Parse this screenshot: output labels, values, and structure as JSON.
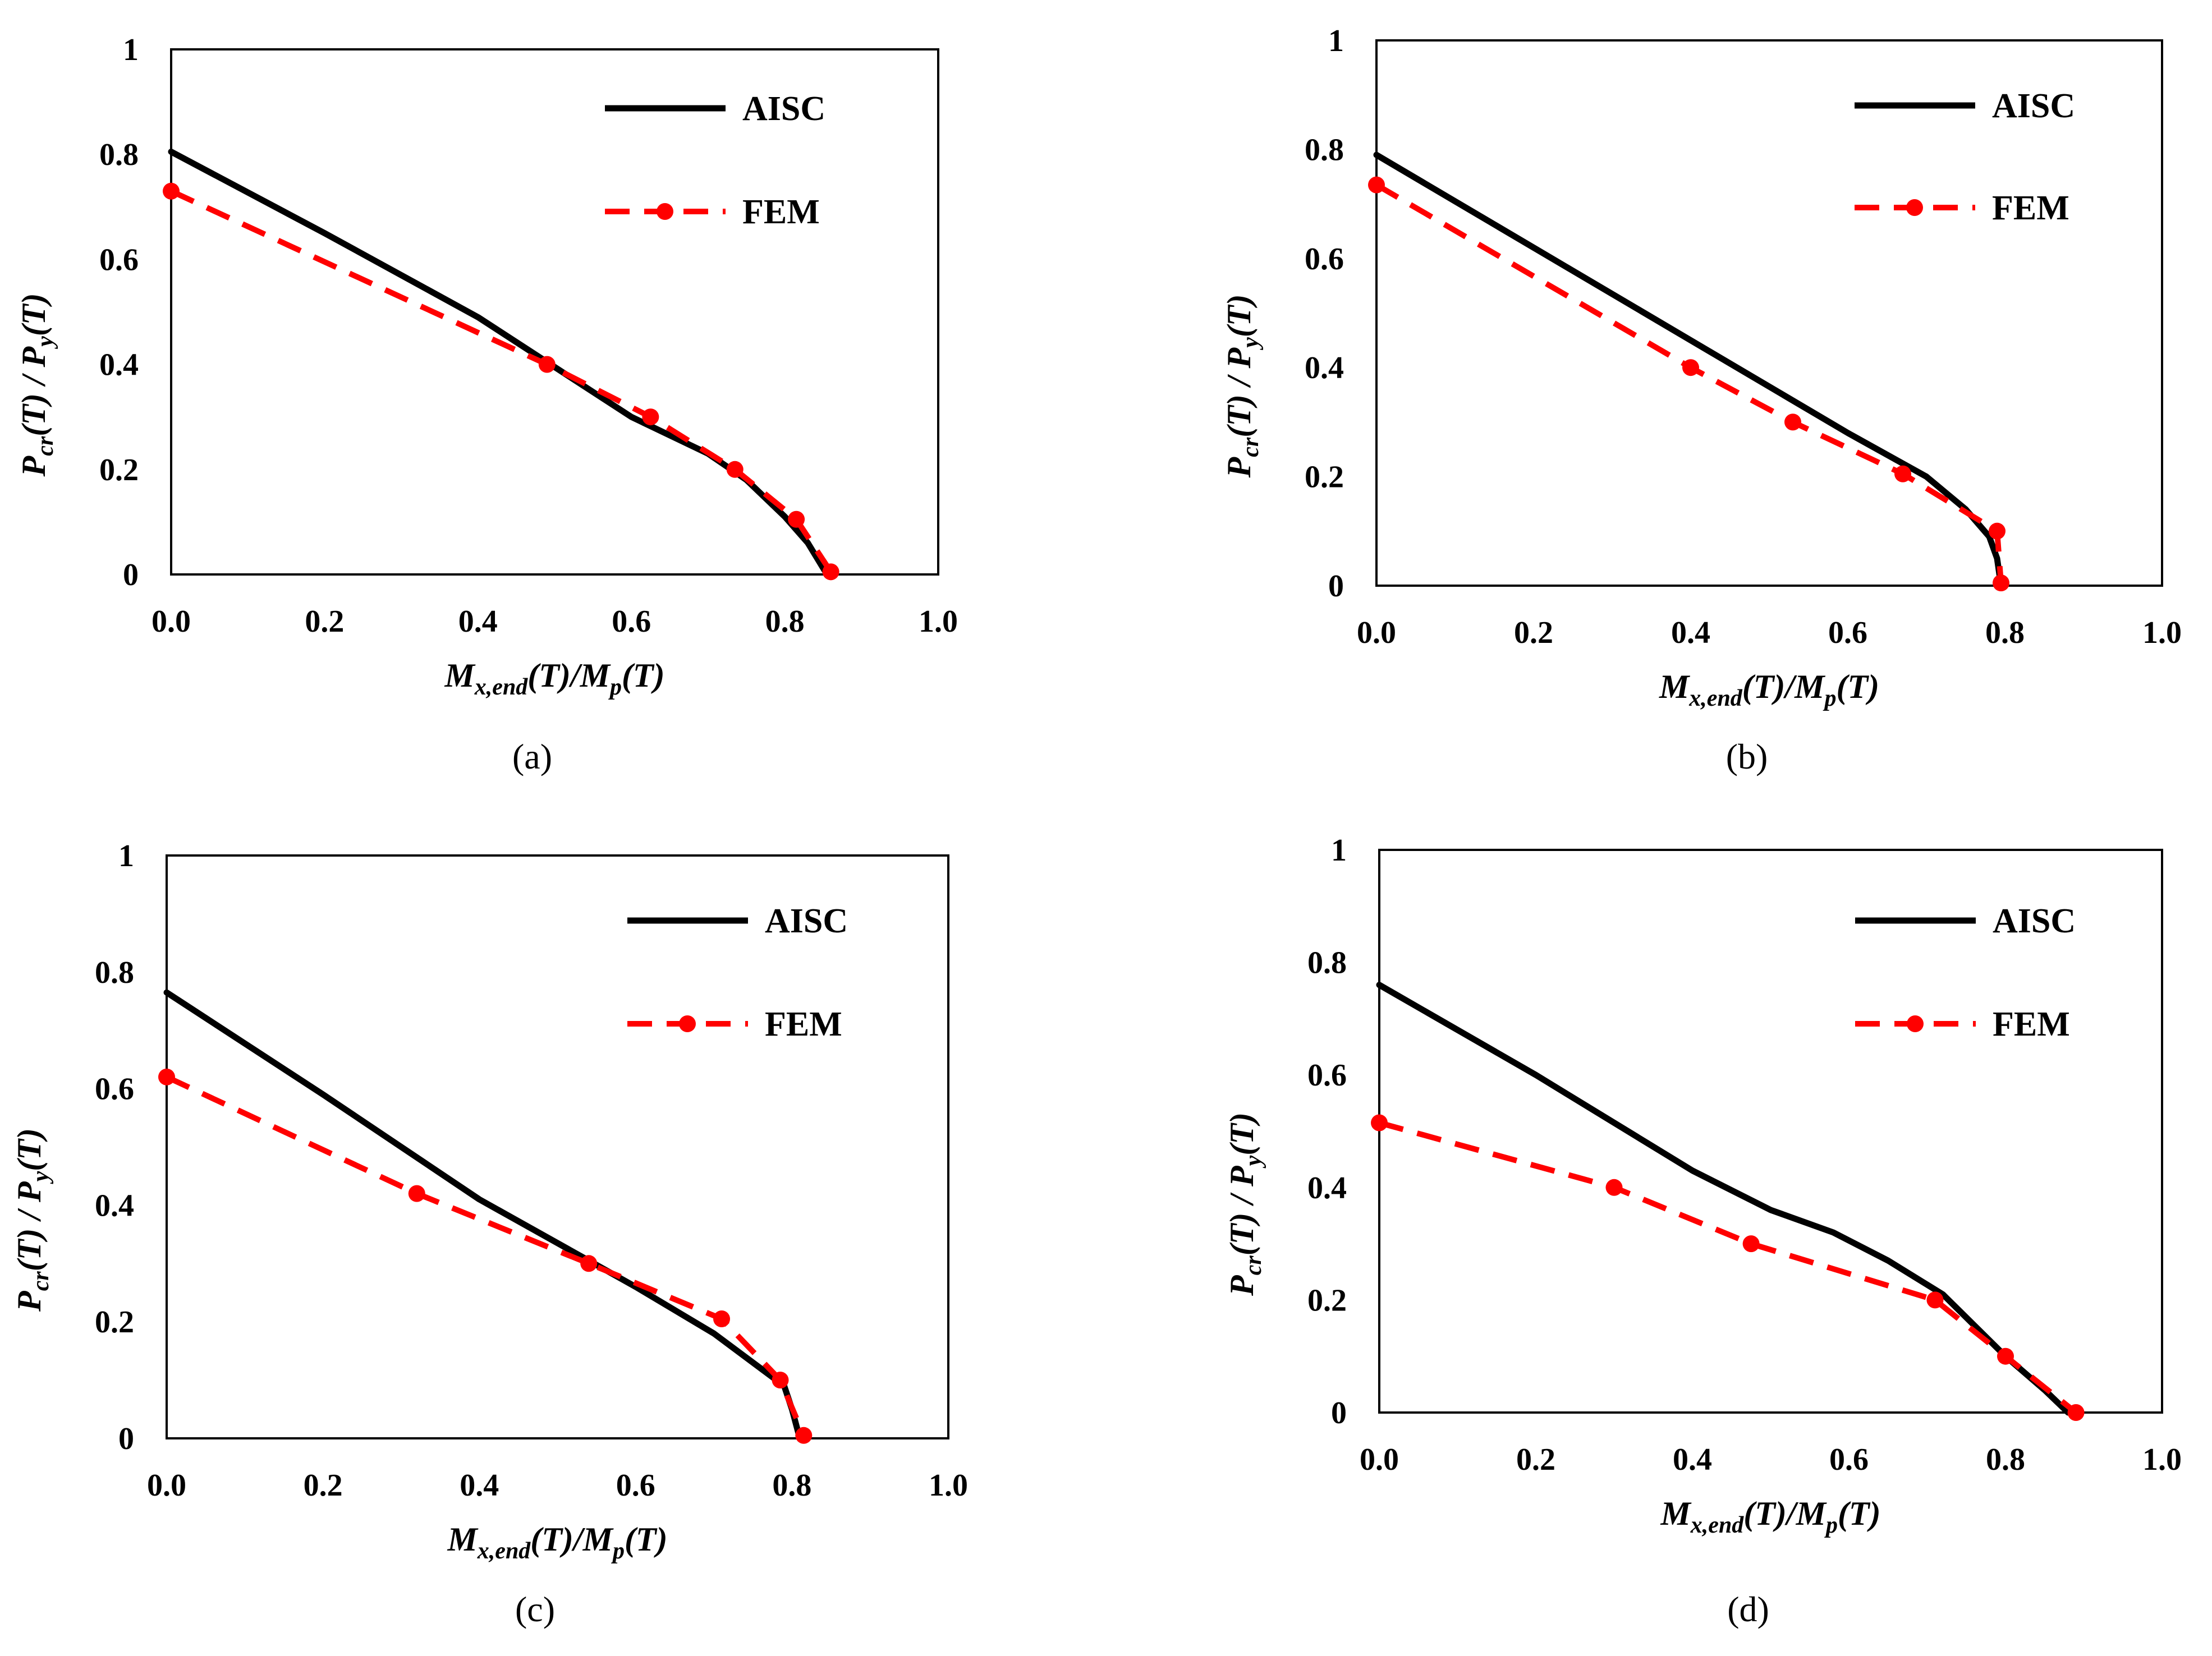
{
  "colors": {
    "aisc": "#000000",
    "fem": "#ff0000",
    "axes": "#000000"
  },
  "chart_data": [
    {
      "panel_label": "(a)",
      "type": "line",
      "xlabel": {
        "main": "M",
        "sub": "x,end",
        "tail": "(T)/M",
        "sub2": "p",
        "tail2": "(T)"
      },
      "ylabel": {
        "main": "P",
        "sub": "cr",
        "mid": "(T) / P",
        "sub2": "y",
        "tail": "(T)"
      },
      "xlim": [
        0,
        1
      ],
      "ylim": [
        0,
        1
      ],
      "xticks": [
        "0.0",
        "0.2",
        "0.4",
        "0.6",
        "0.8",
        "1.0"
      ],
      "yticks": [
        "0",
        "0.2",
        "0.4",
        "0.6",
        "0.8",
        "1"
      ],
      "legend": [
        "AISC",
        "FEM"
      ],
      "series": [
        {
          "name": "AISC",
          "style": "solid",
          "x": [
            0,
            0.2,
            0.4,
            0.6,
            0.7,
            0.75,
            0.8,
            0.83,
            0.855
          ],
          "y": [
            0.805,
            0.65,
            0.49,
            0.3,
            0.23,
            0.18,
            0.11,
            0.06,
            0
          ]
        },
        {
          "name": "FEM",
          "style": "dashed",
          "x": [
            0,
            0.49,
            0.625,
            0.735,
            0.815,
            0.86
          ],
          "y": [
            0.73,
            0.4,
            0.3,
            0.2,
            0.105,
            0.005
          ]
        }
      ]
    },
    {
      "panel_label": "(b)",
      "type": "line",
      "xlabel": {
        "main": "M",
        "sub": "x,end",
        "tail": "(T)/M",
        "sub2": "p",
        "tail2": "(T)"
      },
      "ylabel": {
        "main": "P",
        "sub": "cr",
        "mid": "(T) / P",
        "sub2": "y",
        "tail": "(T)"
      },
      "xlim": [
        0,
        1
      ],
      "ylim": [
        0,
        1
      ],
      "xticks": [
        "0.0",
        "0.2",
        "0.4",
        "0.6",
        "0.8",
        "1.0"
      ],
      "yticks": [
        "0",
        "0.2",
        "0.4",
        "0.6",
        "0.8",
        "1"
      ],
      "legend": [
        "AISC",
        "FEM"
      ],
      "series": [
        {
          "name": "AISC",
          "style": "solid",
          "x": [
            0,
            0.2,
            0.4,
            0.6,
            0.7,
            0.75,
            0.78,
            0.79,
            0.795
          ],
          "y": [
            0.79,
            0.62,
            0.45,
            0.28,
            0.2,
            0.14,
            0.09,
            0.05,
            0
          ]
        },
        {
          "name": "FEM",
          "style": "dashed",
          "x": [
            0,
            0.4,
            0.53,
            0.67,
            0.79,
            0.795
          ],
          "y": [
            0.735,
            0.4,
            0.3,
            0.205,
            0.1,
            0.005
          ]
        }
      ]
    },
    {
      "panel_label": "(c)",
      "type": "line",
      "xlabel": {
        "main": "M",
        "sub": "x,end",
        "tail": "(T)/M",
        "sub2": "p",
        "tail2": "(T)"
      },
      "ylabel": {
        "main": "P",
        "sub": "cr",
        "mid": "(T) / P",
        "sub2": "y",
        "tail": "(T)"
      },
      "xlim": [
        0,
        1
      ],
      "ylim": [
        0,
        1
      ],
      "xticks": [
        "0.0",
        "0.2",
        "0.4",
        "0.6",
        "0.8",
        "1.0"
      ],
      "yticks": [
        "0",
        "0.2",
        "0.4",
        "0.6",
        "0.8",
        "1"
      ],
      "legend": [
        "AISC",
        "FEM"
      ],
      "series": [
        {
          "name": "AISC",
          "style": "solid",
          "x": [
            0,
            0.2,
            0.4,
            0.6,
            0.7,
            0.76,
            0.79,
            0.8,
            0.81
          ],
          "y": [
            0.765,
            0.59,
            0.41,
            0.26,
            0.18,
            0.12,
            0.09,
            0.05,
            0
          ]
        },
        {
          "name": "FEM",
          "style": "dashed",
          "x": [
            0,
            0.32,
            0.54,
            0.71,
            0.785,
            0.815
          ],
          "y": [
            0.62,
            0.42,
            0.3,
            0.205,
            0.1,
            0.005
          ]
        }
      ]
    },
    {
      "panel_label": "(d)",
      "type": "line",
      "xlabel": {
        "main": "M",
        "sub": "x,end",
        "tail": "(T)/M",
        "sub2": "p",
        "tail2": "(T)"
      },
      "ylabel": {
        "main": "P",
        "sub": "cr",
        "mid": "(T) / P",
        "sub2": "y",
        "tail": "(T)"
      },
      "xlim": [
        0,
        1
      ],
      "ylim": [
        0,
        1
      ],
      "xticks": [
        "0.0",
        "0.2",
        "0.4",
        "0.6",
        "0.8",
        "1.0"
      ],
      "yticks": [
        "0",
        "0.2",
        "0.4",
        "0.6",
        "0.8",
        "1"
      ],
      "legend": [
        "AISC",
        "FEM"
      ],
      "series": [
        {
          "name": "AISC",
          "style": "solid",
          "x": [
            0,
            0.2,
            0.4,
            0.5,
            0.58,
            0.65,
            0.72,
            0.8,
            0.85,
            0.88
          ],
          "y": [
            0.76,
            0.6,
            0.43,
            0.36,
            0.32,
            0.27,
            0.21,
            0.1,
            0.04,
            0
          ]
        },
        {
          "name": "FEM",
          "style": "dashed",
          "x": [
            0,
            0.3,
            0.475,
            0.71,
            0.8,
            0.89
          ],
          "y": [
            0.515,
            0.4,
            0.3,
            0.2,
            0.1,
            0
          ]
        }
      ]
    }
  ]
}
